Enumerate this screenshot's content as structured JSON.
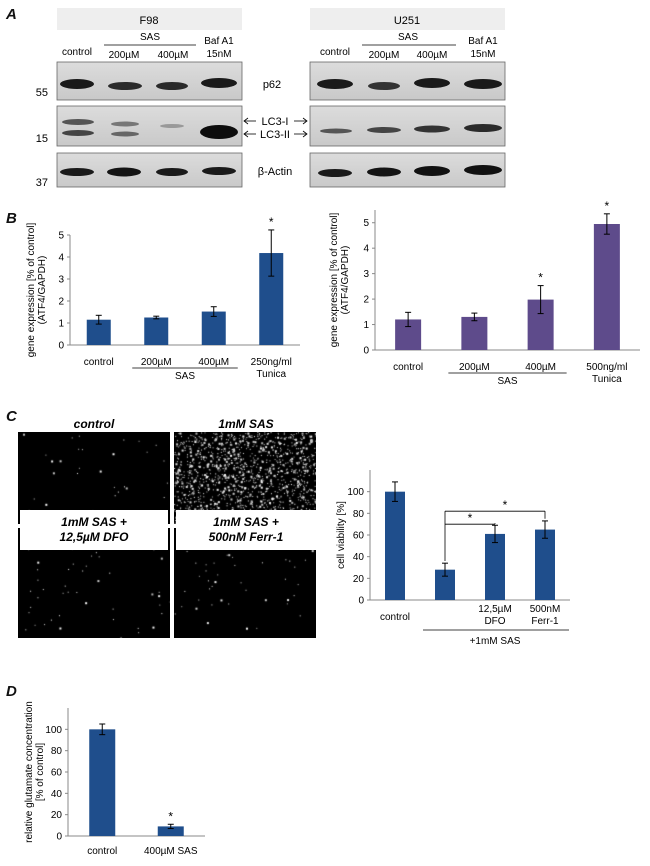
{
  "panels": {
    "A": "A",
    "B": "B",
    "C": "C",
    "D": "D"
  },
  "western": {
    "left": {
      "cell_line": "F98",
      "lanes": [
        "control",
        "200µM",
        "400µM",
        "Baf A1"
      ],
      "sas_label": "SAS",
      "baf_sub": "15nM"
    },
    "right": {
      "cell_line": "U251",
      "lanes": [
        "control",
        "200µM",
        "400µM",
        "Baf A1"
      ],
      "sas_label": "SAS",
      "baf_sub": "15nM"
    },
    "markers": [
      "55",
      "15",
      "37"
    ],
    "proteins": [
      "p62",
      "LC3-I",
      "LC3-II",
      "β-Actin"
    ]
  },
  "chart_data": [
    {
      "type": "bar",
      "id": "B-left",
      "ylabel": "gene expression [% of control] (ATF4/GAPDH)",
      "ylim": [
        0,
        5
      ],
      "yticks": [
        0,
        1,
        2,
        3,
        4,
        5
      ],
      "categories": [
        "control",
        "200µM",
        "400µM",
        "250ng/ml Tunica"
      ],
      "values": [
        1.15,
        1.25,
        1.52,
        4.18
      ],
      "errors": [
        0.2,
        0.06,
        0.22,
        1.05
      ],
      "significant": [
        "",
        "",
        "",
        "*"
      ],
      "group_label": "SAS",
      "color": "#1f4e8c"
    },
    {
      "type": "bar",
      "id": "B-right",
      "ylabel": "gene expression [% of control] (ATF4/GAPDH)",
      "ylim": [
        0,
        5.5
      ],
      "yticks": [
        0,
        1,
        2,
        3,
        4,
        5
      ],
      "categories": [
        "control",
        "200µM",
        "400µM",
        "500ng/ml Tunica"
      ],
      "values": [
        1.2,
        1.3,
        1.98,
        4.95
      ],
      "errors": [
        0.28,
        0.15,
        0.55,
        0.4
      ],
      "significant": [
        "",
        "",
        "*",
        "*"
      ],
      "group_label": "SAS",
      "color": "#5e4b8b"
    },
    {
      "type": "bar",
      "id": "C",
      "ylabel": "cell viability [%]",
      "ylim": [
        0,
        120
      ],
      "yticks": [
        0,
        20,
        40,
        60,
        80,
        100
      ],
      "categories": [
        "control",
        "",
        "12,5µM DFO",
        "500nM Ferr-1"
      ],
      "values": [
        100,
        28,
        61,
        65
      ],
      "errors": [
        9,
        6,
        8,
        8
      ],
      "group_label": "+1mM SAS",
      "significance_brackets": [
        "*",
        "*"
      ],
      "color": "#1f4e8c"
    },
    {
      "type": "bar",
      "id": "D",
      "ylabel": "relative glutamate concentration [% of control]",
      "ylim": [
        0,
        120
      ],
      "yticks": [
        0,
        20,
        40,
        60,
        80,
        100
      ],
      "categories": [
        "control",
        "400µM SAS"
      ],
      "values": [
        100,
        9
      ],
      "errors": [
        5,
        2
      ],
      "significant": [
        "",
        "*"
      ],
      "color": "#1f4e8c"
    }
  ],
  "micrographs": [
    {
      "label": "control",
      "density": 0.02
    },
    {
      "label": "1mM SAS",
      "density": 1.0
    },
    {
      "label": "1mM SAS +",
      "label2": "12,5µM DFO",
      "density": 0.03
    },
    {
      "label": "1mM SAS +",
      "label2": "500nM  Ferr-1",
      "density": 0.03
    }
  ]
}
